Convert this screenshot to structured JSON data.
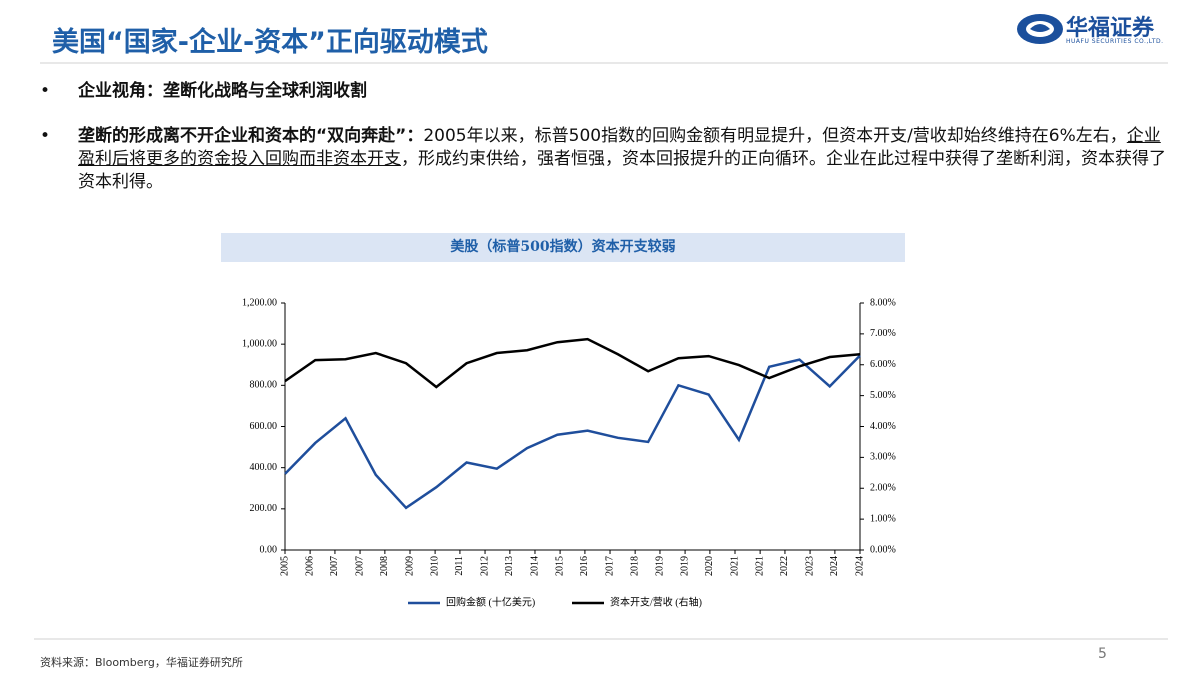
{
  "header": {
    "title": "美国“国家-企业-资本”正向驱动模式",
    "logo": "华福证券",
    "logo_en": "HUAFU SECURITIES CO.,LTD."
  },
  "bullets": [
    {
      "text": "企业视角：垄断化战略与全球利润收割"
    },
    {
      "bold": "垄断的形成离不开企业和资本的“双向奔赴”：",
      "text": "2005年以来，标普500指数的回购金额有明显提升，但资本开支/营收却始终维持在6%左右，",
      "underline": "企业盈利后将更多的资金投入回购而非资本开支",
      "tail": "，形成约束供给，强者恒强，资本回报提升的正向循环。企业在此过程中获得了垄断利润，资本获得了资本利得。"
    }
  ],
  "chart_data": {
    "type": "line",
    "title": "美股（标普500指数）资本开支较弱",
    "x": [
      2005,
      2006,
      2007,
      2008,
      2009,
      2010,
      2011,
      2012,
      2013,
      2014,
      2015,
      2016,
      2017,
      2018,
      2019,
      2020,
      2021,
      2022,
      2023,
      2024
    ],
    "xlim": [
      2005,
      2024
    ],
    "xticks": [
      {
        "value": 2005,
        "label": "2005"
      },
      {
        "value": 2005.83,
        "label": "2006"
      },
      {
        "value": 2006.65,
        "label": "2007"
      },
      {
        "value": 2007.48,
        "label": "2007"
      },
      {
        "value": 2008.3,
        "label": "2008"
      },
      {
        "value": 2009.13,
        "label": "2009"
      },
      {
        "value": 2009.96,
        "label": "2010"
      },
      {
        "value": 2010.78,
        "label": "2011"
      },
      {
        "value": 2011.61,
        "label": "2012"
      },
      {
        "value": 2012.43,
        "label": "2013"
      },
      {
        "value": 2013.26,
        "label": "2014"
      },
      {
        "value": 2014.09,
        "label": "2015"
      },
      {
        "value": 2014.91,
        "label": "2016"
      },
      {
        "value": 2015.74,
        "label": "2017"
      },
      {
        "value": 2016.57,
        "label": "2018"
      },
      {
        "value": 2017.39,
        "label": "2019"
      },
      {
        "value": 2018.22,
        "label": "2019"
      },
      {
        "value": 2019.04,
        "label": "2020"
      },
      {
        "value": 2019.87,
        "label": "2021"
      },
      {
        "value": 2020.7,
        "label": "2021"
      },
      {
        "value": 2021.52,
        "label": "2022"
      },
      {
        "value": 2022.35,
        "label": "2023"
      },
      {
        "value": 2023.17,
        "label": "2024"
      },
      {
        "value": 2024,
        "label": "2024"
      }
    ],
    "ylim": [
      0,
      1200
    ],
    "yticks": [
      {
        "value": 0,
        "label": "0.00"
      },
      {
        "value": 200,
        "label": "200.00"
      },
      {
        "value": 400,
        "label": "400.00"
      },
      {
        "value": 600,
        "label": "600.00"
      },
      {
        "value": 800,
        "label": "800.00"
      },
      {
        "value": 1000,
        "label": "1,000.00"
      },
      {
        "value": 1200,
        "label": "1,200.00"
      }
    ],
    "y2lim": [
      0,
      8
    ],
    "y2ticks": [
      {
        "value": 0,
        "label": "0.00%"
      },
      {
        "value": 1,
        "label": "1.00%"
      },
      {
        "value": 2,
        "label": "2.00%"
      },
      {
        "value": 3,
        "label": "3.00%"
      },
      {
        "value": 4,
        "label": "4.00%"
      },
      {
        "value": 5,
        "label": "5.00%"
      },
      {
        "value": 6,
        "label": "6.00%"
      },
      {
        "value": 7,
        "label": "7.00%"
      },
      {
        "value": 8,
        "label": "8.00%"
      }
    ],
    "series": [
      {
        "name": "回购金额 (十亿美元)",
        "color": "#1f4e9c",
        "values": [
          370,
          520,
          640,
          365,
          205,
          305,
          425,
          395,
          495,
          560,
          580,
          545,
          525,
          800,
          755,
          535,
          890,
          925,
          795,
          945
        ]
      },
      {
        "name": "资本开支/营收 (右轴)",
        "color": "#000000",
        "axis": "y2",
        "values": [
          5.47,
          6.15,
          6.18,
          6.38,
          6.05,
          5.28,
          6.05,
          6.38,
          6.47,
          6.73,
          6.83,
          6.34,
          5.79,
          6.21,
          6.28,
          5.99,
          5.57,
          5.95,
          6.25,
          6.34
        ]
      }
    ],
    "legend": "bottom"
  },
  "source": "资料来源：Bloomberg，华福证券研究所",
  "page_number": 5
}
